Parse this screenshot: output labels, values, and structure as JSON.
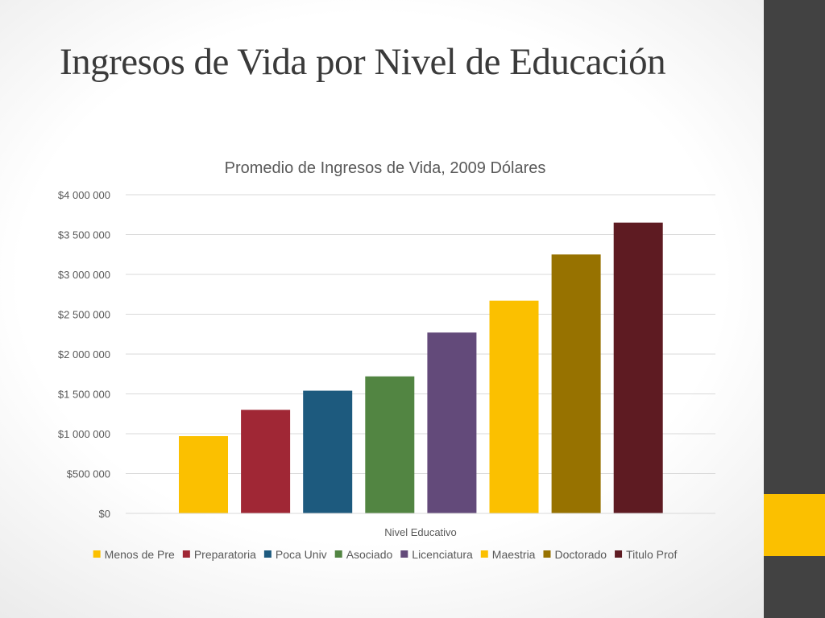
{
  "slide": {
    "title": "Ingresos de Vida por Nivel de Educación",
    "accent_color": "#fbc000",
    "sidebar_color": "#424242"
  },
  "chart_data": {
    "type": "bar",
    "title": "Promedio de Ingresos de Vida, 2009 Dólares",
    "xlabel": "Nivel Educativo",
    "ylabel": "",
    "ylim": [
      0,
      4000000
    ],
    "y_ticks": [
      0,
      500000,
      1000000,
      1500000,
      2000000,
      2500000,
      3000000,
      3500000,
      4000000
    ],
    "y_tick_labels": [
      "$0",
      "$500 000",
      "$1 000 000",
      "$1 500 000",
      "$2 000 000",
      "$2 500 000",
      "$3 000 000",
      "$3 500 000",
      "$4 000 000"
    ],
    "grid": true,
    "legend_position": "bottom",
    "series": [
      {
        "name": "Menos de Pre",
        "values": [
          970000
        ],
        "color": "#fbc000"
      },
      {
        "name": "Preparatoria",
        "values": [
          1300000
        ],
        "color": "#a02735"
      },
      {
        "name": "Poca Univ",
        "values": [
          1540000
        ],
        "color": "#1d5a7e"
      },
      {
        "name": "Asociado",
        "values": [
          1720000
        ],
        "color": "#528542"
      },
      {
        "name": "Licenciatura",
        "values": [
          2270000
        ],
        "color": "#634a7a"
      },
      {
        "name": "Maestria",
        "values": [
          2670000
        ],
        "color": "#fbc000"
      },
      {
        "name": "Doctorado",
        "values": [
          3250000
        ],
        "color": "#977200"
      },
      {
        "name": "Titulo Prof",
        "values": [
          3650000
        ],
        "color": "#5e1b22"
      }
    ]
  }
}
